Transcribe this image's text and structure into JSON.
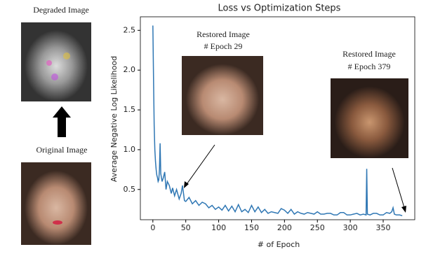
{
  "chart_data": {
    "type": "line",
    "title": "Loss vs Optimization Steps",
    "xlabel": "# of Epoch",
    "ylabel": "Average Negative Log Likelihood",
    "color": "#2f77b4",
    "x": [
      0,
      1,
      2,
      3,
      4,
      5,
      6,
      7,
      8,
      9,
      10,
      11,
      12,
      14,
      16,
      18,
      20,
      22,
      25,
      28,
      30,
      33,
      36,
      40,
      43,
      45,
      48,
      50,
      55,
      60,
      65,
      70,
      75,
      80,
      85,
      90,
      95,
      100,
      105,
      110,
      115,
      120,
      125,
      130,
      135,
      140,
      145,
      150,
      155,
      160,
      165,
      170,
      175,
      180,
      185,
      190,
      195,
      200,
      205,
      210,
      215,
      220,
      225,
      230,
      235,
      240,
      245,
      250,
      255,
      260,
      265,
      270,
      275,
      280,
      285,
      290,
      295,
      300,
      305,
      310,
      315,
      320,
      324,
      325,
      326,
      330,
      335,
      340,
      345,
      350,
      355,
      360,
      363,
      365,
      367,
      370,
      375,
      379
    ],
    "values": [
      2.56,
      1.9,
      1.3,
      1.0,
      0.85,
      0.75,
      0.68,
      0.65,
      0.6,
      0.62,
      0.75,
      1.08,
      0.7,
      0.6,
      0.65,
      0.72,
      0.5,
      0.6,
      0.55,
      0.45,
      0.52,
      0.42,
      0.5,
      0.38,
      0.45,
      0.55,
      0.36,
      0.35,
      0.4,
      0.32,
      0.36,
      0.3,
      0.34,
      0.32,
      0.27,
      0.3,
      0.25,
      0.28,
      0.24,
      0.3,
      0.23,
      0.29,
      0.22,
      0.31,
      0.22,
      0.25,
      0.21,
      0.3,
      0.22,
      0.28,
      0.21,
      0.25,
      0.2,
      0.22,
      0.21,
      0.2,
      0.26,
      0.24,
      0.2,
      0.25,
      0.19,
      0.22,
      0.2,
      0.19,
      0.21,
      0.2,
      0.19,
      0.22,
      0.19,
      0.19,
      0.2,
      0.2,
      0.18,
      0.18,
      0.21,
      0.21,
      0.18,
      0.18,
      0.19,
      0.2,
      0.18,
      0.19,
      0.18,
      0.76,
      0.19,
      0.18,
      0.2,
      0.2,
      0.18,
      0.18,
      0.21,
      0.2,
      0.22,
      0.27,
      0.19,
      0.18,
      0.18,
      0.17
    ],
    "xlim": [
      -19,
      398
    ],
    "ylim": [
      0.12,
      2.67
    ],
    "xticks": [
      0,
      50,
      100,
      150,
      200,
      250,
      300,
      350
    ],
    "yticks": [
      0.5,
      {
        "value": 1.0,
        "label": "1.0"
      },
      1.5,
      {
        "value": 2.0,
        "label": "2.0"
      },
      2.5
    ],
    "grid": false,
    "annotations": [
      {
        "title": "Restored Image",
        "text": "# Epoch 29"
      },
      {
        "title": "Restored Image",
        "text": "# Epoch 379"
      }
    ]
  },
  "images": {
    "degraded": "Degraded Image",
    "original": "Original Image"
  }
}
